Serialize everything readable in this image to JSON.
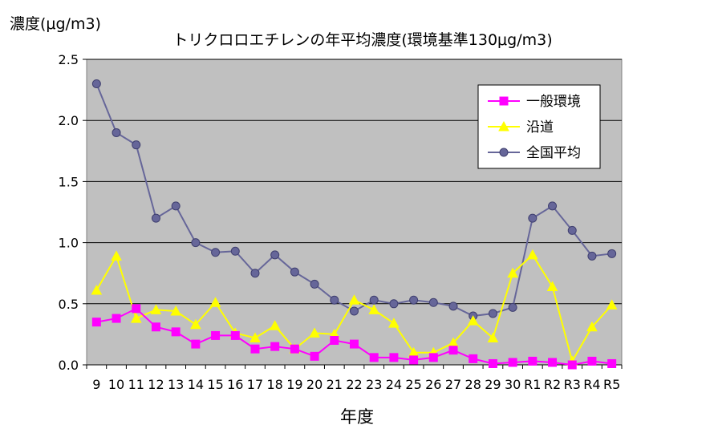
{
  "chart_data": {
    "type": "line",
    "title": "トリクロロエチレンの年平均濃度(環境基準130μg/m3)",
    "ylabel": "濃度(μg/m3)",
    "xlabel": "年度",
    "ylim": [
      0,
      2.5
    ],
    "yticks": [
      "0.0",
      "0.5",
      "1.0",
      "1.5",
      "2.0",
      "2.5"
    ],
    "grid": true,
    "legend_position": "top-right",
    "categories": [
      "9",
      "10",
      "11",
      "12",
      "13",
      "14",
      "15",
      "16",
      "17",
      "18",
      "19",
      "20",
      "21",
      "22",
      "23",
      "24",
      "25",
      "26",
      "27",
      "28",
      "29",
      "30",
      "R1",
      "R2",
      "R3",
      "R4",
      "R5"
    ],
    "series": [
      {
        "name": "一般環境",
        "color": "#ff00ff",
        "marker": "square",
        "values": [
          0.35,
          0.38,
          0.46,
          0.31,
          0.27,
          0.17,
          0.24,
          0.24,
          0.13,
          0.15,
          0.13,
          0.07,
          0.2,
          0.17,
          0.06,
          0.06,
          0.04,
          0.06,
          0.12,
          0.05,
          0.01,
          0.02,
          0.03,
          0.02,
          0.0,
          0.03,
          0.01
        ]
      },
      {
        "name": "沿道",
        "color": "#ffff00",
        "marker": "triangle",
        "values": [
          0.61,
          0.89,
          0.38,
          0.45,
          0.44,
          0.33,
          0.51,
          0.26,
          0.22,
          0.32,
          0.13,
          0.26,
          0.25,
          0.53,
          0.45,
          0.34,
          0.1,
          0.1,
          0.18,
          0.36,
          0.22,
          0.75,
          0.9,
          0.64,
          0.03,
          0.31,
          0.49
        ]
      },
      {
        "name": "全国平均",
        "color": "#666699",
        "marker": "circle",
        "values": [
          2.3,
          1.9,
          1.8,
          1.2,
          1.3,
          1.0,
          0.92,
          0.93,
          0.75,
          0.9,
          0.76,
          0.66,
          0.53,
          0.44,
          0.53,
          0.5,
          0.53,
          0.51,
          0.48,
          0.4,
          0.42,
          0.47,
          1.2,
          1.3,
          1.1,
          0.89,
          0.91
        ]
      }
    ]
  }
}
